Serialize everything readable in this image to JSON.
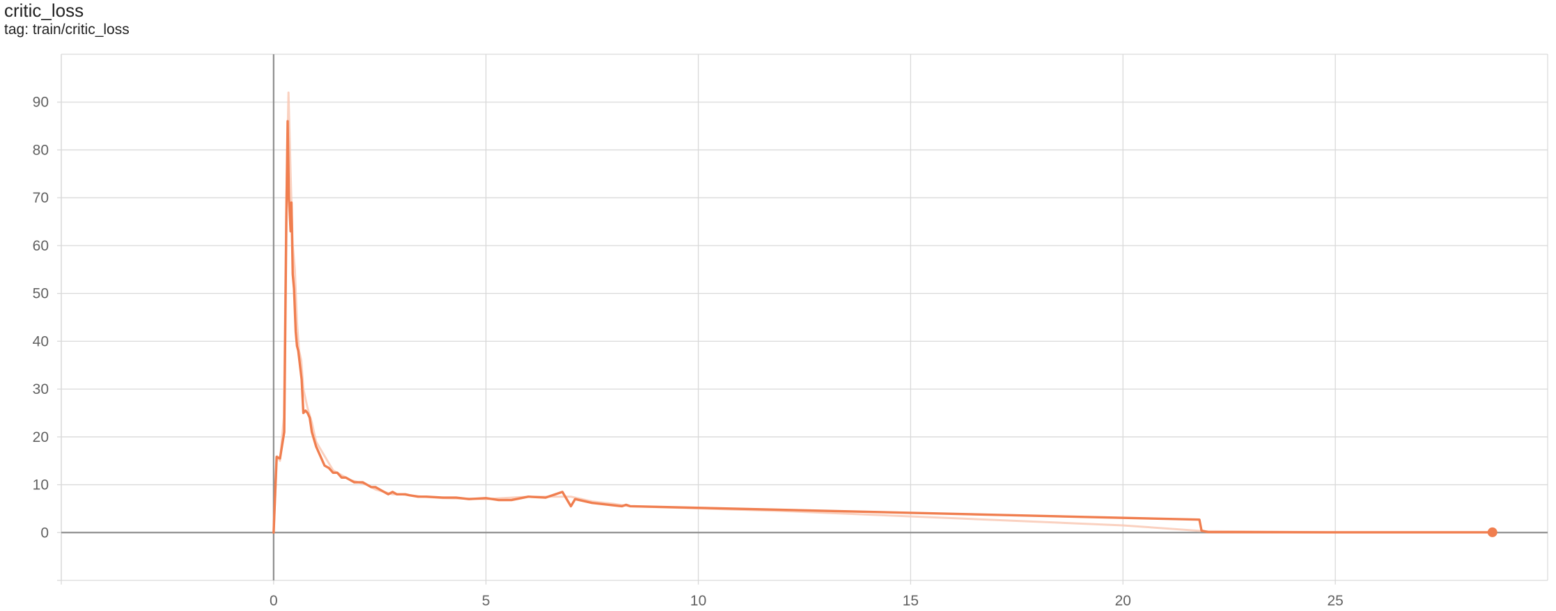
{
  "card": {
    "title": "critic_loss",
    "subtitle": "tag: train/critic_loss"
  },
  "colors": {
    "series": "#f07e4f",
    "raw": "#f9c6b0",
    "grid": "#d9d9d9",
    "zero_axis": "#8e8e8e",
    "tick_text": "#616161"
  },
  "chart_data": {
    "type": "line",
    "title": "critic_loss",
    "subtitle": "tag: train/critic_loss",
    "xlabel": "",
    "ylabel": "",
    "xlim": [
      -5,
      30
    ],
    "ylim": [
      -10,
      100
    ],
    "x_ticks": [
      "0",
      "5",
      "10",
      "15",
      "20",
      "25"
    ],
    "y_ticks": [
      "0",
      "10",
      "20",
      "30",
      "40",
      "50",
      "60",
      "70",
      "80",
      "90"
    ],
    "grid": true,
    "legend": "none",
    "series": [
      {
        "role": "smoothed",
        "x": [
          0,
          0.07,
          0.15,
          0.25,
          0.3,
          0.33,
          0.36,
          0.4,
          0.42,
          0.45,
          0.48,
          0.52,
          0.55,
          0.58,
          0.62,
          0.66,
          0.7,
          0.75,
          0.8,
          0.85,
          0.9,
          1.0,
          1.1,
          1.2,
          1.3,
          1.35,
          1.4,
          1.5,
          1.6,
          1.7,
          1.8,
          1.9,
          2.0,
          2.1,
          2.2,
          2.3,
          2.4,
          2.5,
          2.6,
          2.7,
          2.8,
          2.9,
          3.0,
          3.1,
          3.2,
          3.4,
          3.6,
          4.0,
          4.3,
          4.6,
          5.0,
          5.3,
          5.6,
          6.0,
          6.4,
          6.8,
          7.0,
          7.1,
          7.2,
          7.5,
          7.9,
          8.2,
          8.3,
          8.4,
          21.8,
          21.85,
          22.0,
          25.0,
          28.7
        ],
        "y": [
          0,
          15.8,
          15.5,
          21,
          66,
          86,
          70,
          63,
          69,
          54,
          51,
          42,
          39,
          38,
          35,
          32,
          25,
          25.5,
          25,
          24,
          21,
          18,
          16,
          14,
          13.5,
          13,
          12.5,
          12.5,
          11.5,
          11.5,
          11,
          10.5,
          10.5,
          10.5,
          10,
          9.5,
          9.5,
          9,
          8.5,
          8,
          8.5,
          8,
          8,
          8,
          7.8,
          7.5,
          7.5,
          7.3,
          7.3,
          7.0,
          7.2,
          6.8,
          6.8,
          7.5,
          7.3,
          8.5,
          5.5,
          7.0,
          6.8,
          6.2,
          5.8,
          5.5,
          5.8,
          5.5,
          2.7,
          0.4,
          0.1,
          0.05,
          0.05
        ]
      },
      {
        "role": "raw",
        "x": [
          0,
          0.08,
          0.15,
          0.24,
          0.3,
          0.35,
          0.4,
          0.45,
          0.5,
          0.55,
          0.6,
          0.65,
          0.7,
          0.8,
          0.9,
          1.0,
          1.2,
          1.4,
          1.6,
          1.8,
          2.0,
          2.2,
          2.4,
          2.6,
          2.8,
          3.0,
          3.5,
          4.0,
          5.0,
          6.0,
          7.0,
          7.5,
          8.0,
          8.4,
          12.0,
          16.0,
          20.0,
          21.9,
          25.0,
          28.7
        ],
        "y": [
          0,
          16,
          15,
          24,
          70,
          92,
          75,
          60,
          55,
          44,
          38,
          36,
          30,
          26,
          23,
          19,
          16,
          13,
          12,
          11,
          10.5,
          10,
          9,
          8.5,
          8,
          8,
          7.5,
          7.2,
          7,
          7.5,
          7.5,
          6.5,
          6,
          5.5,
          4.5,
          3.0,
          1.5,
          0.3,
          0.05,
          0.05
        ]
      }
    ]
  }
}
